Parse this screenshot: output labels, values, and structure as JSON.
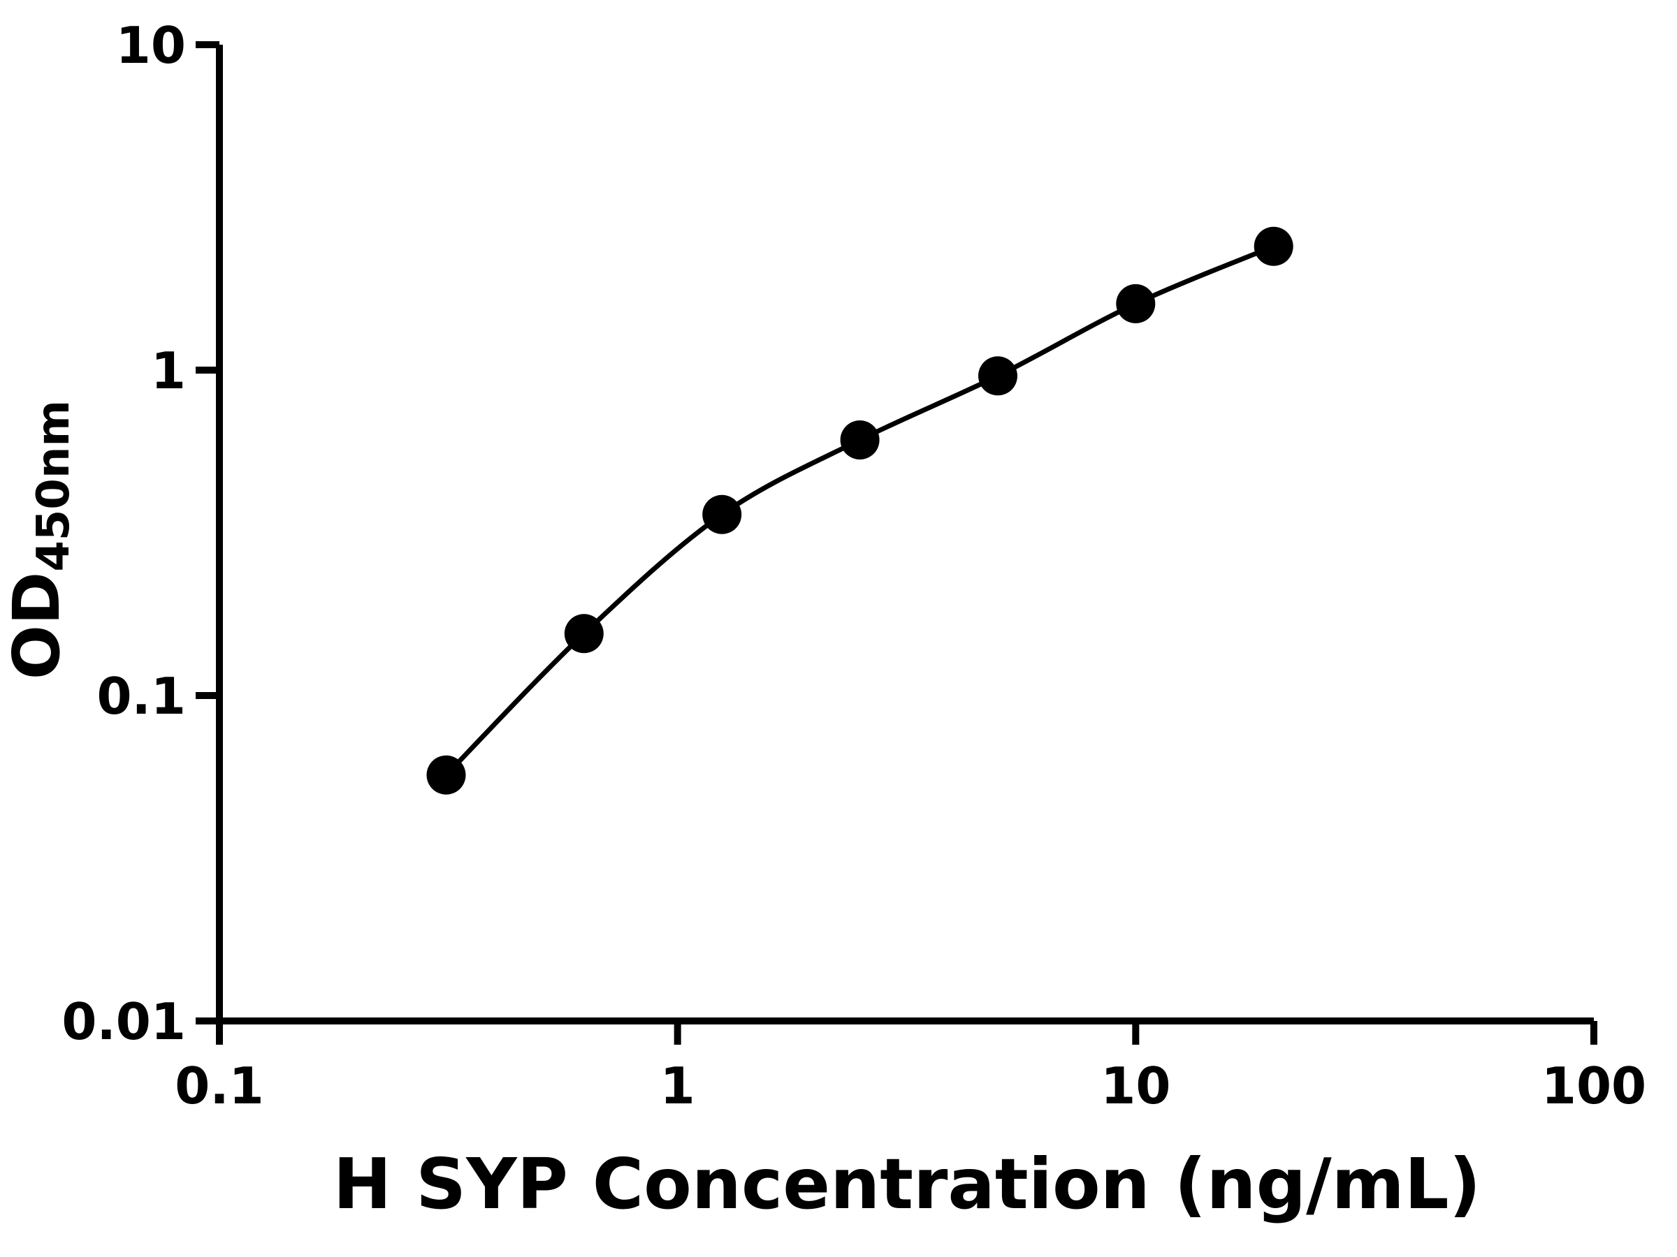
{
  "chart_data": {
    "type": "scatter",
    "title": "",
    "xlabel": "H SYP Concentration (ng/mL)",
    "ylabel": "OD450nm",
    "ylabel_main": "OD",
    "ylabel_sub": "450nm",
    "x_scale": "log",
    "y_scale": "log",
    "xlim": [
      0.1,
      100
    ],
    "ylim": [
      0.01,
      10
    ],
    "x_ticks": [
      0.1,
      1,
      10,
      100
    ],
    "x_tick_labels": [
      "0.1",
      "1",
      "10",
      "100"
    ],
    "y_ticks": [
      0.01,
      0.1,
      1,
      10
    ],
    "y_tick_labels": [
      "0.01",
      "0.1",
      "1",
      "10"
    ],
    "x": [
      0.3125,
      0.625,
      1.25,
      2.5,
      5,
      10,
      20
    ],
    "y": [
      0.057,
      0.155,
      0.36,
      0.61,
      0.96,
      1.6,
      2.4
    ],
    "curve_style": "smooth",
    "grid": false,
    "legend": false,
    "marker_color": "#000000",
    "line_color": "#000000",
    "axis_color": "#000000",
    "background_color": "#ffffff"
  }
}
